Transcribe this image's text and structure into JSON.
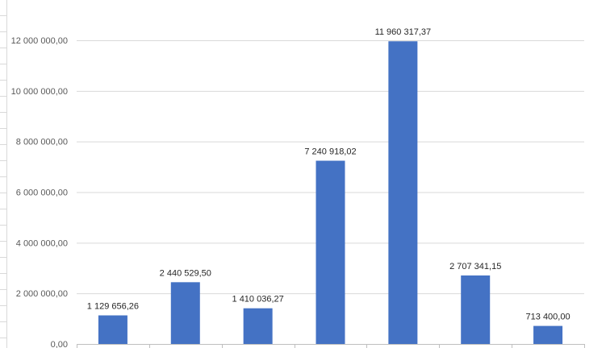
{
  "chart_data": {
    "type": "bar",
    "categories": [
      "",
      "",
      "",
      "",
      "",
      "",
      ""
    ],
    "values": [
      1129656.26,
      2440529.5,
      1410036.27,
      7240918.02,
      11960317.37,
      2707341.15,
      713400.0
    ],
    "value_labels": [
      "1 129 656,26",
      "2 440 529,50",
      "1 410 036,27",
      "7 240 918,02",
      "11 960 317,37",
      "2 707 341,15",
      "713 400,00"
    ],
    "yticks": [
      0,
      2000000,
      4000000,
      6000000,
      8000000,
      10000000,
      12000000
    ],
    "ytick_labels": [
      "0,00",
      "2 000 000,00",
      "4 000 000,00",
      "6 000 000,00",
      "8 000 000,00",
      "10 000 000,00",
      "12 000 000,00"
    ],
    "ylim": [
      0,
      12000000
    ],
    "title": "",
    "xlabel": "",
    "ylabel": "",
    "grid": true,
    "bar_color": "#4472C4",
    "gridline_color": "#d9d9d9",
    "axis_color": "#bfbfbf"
  }
}
